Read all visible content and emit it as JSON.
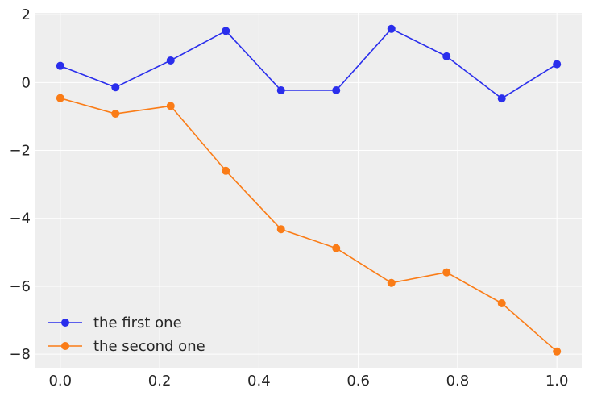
{
  "chart_data": {
    "type": "line",
    "x": [
      0.0,
      0.1111,
      0.2222,
      0.3333,
      0.4444,
      0.5556,
      0.6667,
      0.7778,
      0.8889,
      1.0
    ],
    "series": [
      {
        "name": "the first one",
        "color": "#2a2eec",
        "values": [
          0.49,
          -0.14,
          0.65,
          1.52,
          -0.23,
          -0.23,
          1.58,
          0.77,
          -0.47,
          0.54
        ]
      },
      {
        "name": "the second one",
        "color": "#fa7c17",
        "values": [
          -0.46,
          -0.92,
          -0.69,
          -2.6,
          -4.32,
          -4.88,
          -5.9,
          -5.59,
          -6.5,
          -7.92
        ]
      }
    ],
    "xlim": [
      -0.05,
      1.05
    ],
    "ylim": [
      -8.4,
      2.05
    ],
    "x_ticks": [
      0.0,
      0.2,
      0.4,
      0.6,
      0.8,
      1.0
    ],
    "x_tick_labels": [
      "0.0",
      "0.2",
      "0.4",
      "0.6",
      "0.8",
      "1.0"
    ],
    "y_ticks": [
      2,
      0,
      -2,
      -4,
      -6,
      -8
    ],
    "y_tick_labels": [
      "2",
      "0",
      "−2",
      "−4",
      "−6",
      "−8"
    ],
    "title": "",
    "xlabel": "",
    "ylabel": "",
    "grid": true,
    "legend_position": "lower-left",
    "background_color": "#eeeeee",
    "grid_color": "#ffffff"
  }
}
